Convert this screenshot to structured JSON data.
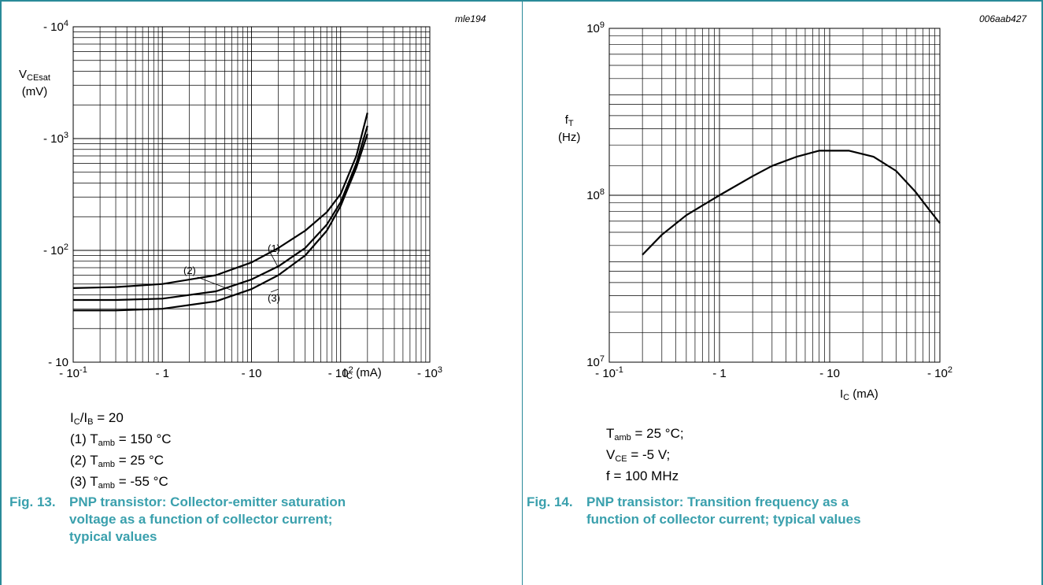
{
  "figures": [
    {
      "id": "fig13",
      "ref": "mle194",
      "fig_number": "Fig. 13.",
      "caption": "PNP transistor: Collector-emitter saturation voltage as a function of collector current; typical values",
      "notes": [
        "IC/IB = 20",
        "(1) Tamb = 150 °C",
        "(2) Tamb = 25 °C",
        "(3) Tamb = -55 °C"
      ]
    },
    {
      "id": "fig14",
      "ref": "006aab427",
      "fig_number": "Fig. 14.",
      "caption": "PNP transistor: Transition frequency as a function of collector current; typical values",
      "notes": [
        "Tamb = 25 °C;",
        "VCE = -5 V;",
        "f = 100 MHz"
      ]
    }
  ],
  "chart_data": [
    {
      "type": "line",
      "ylabel": "VCEsat (mV)",
      "xlabel": "IC (mA)",
      "x_scale": "log",
      "y_scale": "log",
      "xlim": [
        -0.1,
        -1000
      ],
      "ylim": [
        -10,
        -10000
      ],
      "x_ticks": [
        {
          "value": -0.1,
          "base": "- 10",
          "exp": "-1"
        },
        {
          "value": -1,
          "base": "- 1",
          "exp": ""
        },
        {
          "value": -10,
          "base": "- 10",
          "exp": ""
        },
        {
          "value": -100,
          "base": "- 10",
          "exp": "2"
        },
        {
          "value": -1000,
          "base": "- 10",
          "exp": "3"
        }
      ],
      "y_ticks": [
        {
          "value": -10,
          "base": "- 10",
          "exp": ""
        },
        {
          "value": -100,
          "base": "- 10",
          "exp": "2"
        },
        {
          "value": -1000,
          "base": "- 10",
          "exp": "3"
        },
        {
          "value": -10000,
          "base": "- 10",
          "exp": "4"
        }
      ],
      "grid": true,
      "series": [
        {
          "name": "(1)",
          "x": [
            -0.1,
            -0.3,
            -1,
            -4,
            -10,
            -20,
            -40,
            -70,
            -100,
            -150,
            -200
          ],
          "y": [
            -46,
            -47,
            -50,
            -60,
            -78,
            -105,
            -150,
            -220,
            -320,
            -700,
            -1700
          ]
        },
        {
          "name": "(2)",
          "x": [
            -0.1,
            -0.3,
            -1,
            -4,
            -10,
            -20,
            -40,
            -70,
            -100,
            -150,
            -200
          ],
          "y": [
            -36,
            -36,
            -37,
            -43,
            -55,
            -72,
            -105,
            -170,
            -270,
            -600,
            -1300
          ]
        },
        {
          "name": "(3)",
          "x": [
            -0.1,
            -0.3,
            -1,
            -4,
            -10,
            -20,
            -40,
            -70,
            -100,
            -150,
            -200
          ],
          "y": [
            -29,
            -29,
            -30,
            -35,
            -45,
            -60,
            -90,
            -150,
            -250,
            -550,
            -1100
          ]
        }
      ]
    },
    {
      "type": "line",
      "ylabel": "fT (Hz)",
      "xlabel": "IC (mA)",
      "x_scale": "log",
      "y_scale": "log",
      "xlim": [
        -0.1,
        -100
      ],
      "ylim": [
        10000000,
        1000000000
      ],
      "x_ticks": [
        {
          "value": -0.1,
          "base": "- 10",
          "exp": "-1"
        },
        {
          "value": -1,
          "base": "- 1",
          "exp": ""
        },
        {
          "value": -10,
          "base": "- 10",
          "exp": ""
        },
        {
          "value": -100,
          "base": "- 10",
          "exp": "2"
        }
      ],
      "y_ticks": [
        {
          "value": 10000000,
          "base": "10",
          "exp": "7"
        },
        {
          "value": 100000000,
          "base": "10",
          "exp": "8"
        },
        {
          "value": 1000000000,
          "base": "10",
          "exp": "9"
        }
      ],
      "grid": true,
      "series": [
        {
          "name": "",
          "x": [
            -0.2,
            -0.3,
            -0.5,
            -1,
            -2,
            -3,
            -5,
            -8,
            -15,
            -25,
            -40,
            -60,
            -80,
            -100
          ],
          "y": [
            44000000,
            58000000,
            76000000,
            100000000,
            130000000,
            150000000,
            170000000,
            185000000,
            185000000,
            170000000,
            140000000,
            105000000,
            82000000,
            68000000
          ]
        }
      ],
      "annotations": []
    }
  ]
}
